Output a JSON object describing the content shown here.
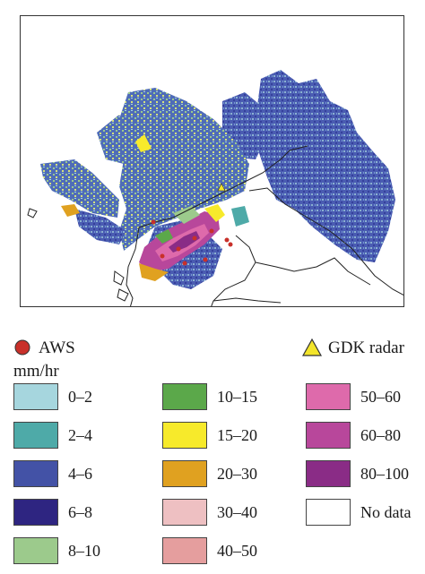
{
  "legend": {
    "markers": [
      {
        "id": "aws",
        "label": "AWS",
        "shape": "circle",
        "color": "#c8302a"
      },
      {
        "id": "radar",
        "label": "GDK radar",
        "shape": "triangle",
        "color": "#f3e52a"
      }
    ],
    "unit_label": "mm/hr",
    "classes": [
      {
        "label": "0–2",
        "color": "#a6d6de"
      },
      {
        "label": "2–4",
        "color": "#4eaaa8"
      },
      {
        "label": "4–6",
        "color": "#4352a6"
      },
      {
        "label": "6–8",
        "color": "#2e2581"
      },
      {
        "label": "8–10",
        "color": "#9cca8c"
      },
      {
        "label": "10–15",
        "color": "#5ba84a"
      },
      {
        "label": "15–20",
        "color": "#f7ea2b"
      },
      {
        "label": "20–30",
        "color": "#e0a120"
      },
      {
        "label": "30–40",
        "color": "#eec0c2"
      },
      {
        "label": "40–50",
        "color": "#e59e9e"
      },
      {
        "label": "50–60",
        "color": "#de6aab"
      },
      {
        "label": "60–80",
        "color": "#b8479b"
      },
      {
        "label": "80–100",
        "color": "#8a2c86"
      },
      {
        "label": "No data",
        "color": "#ffffff"
      }
    ]
  }
}
